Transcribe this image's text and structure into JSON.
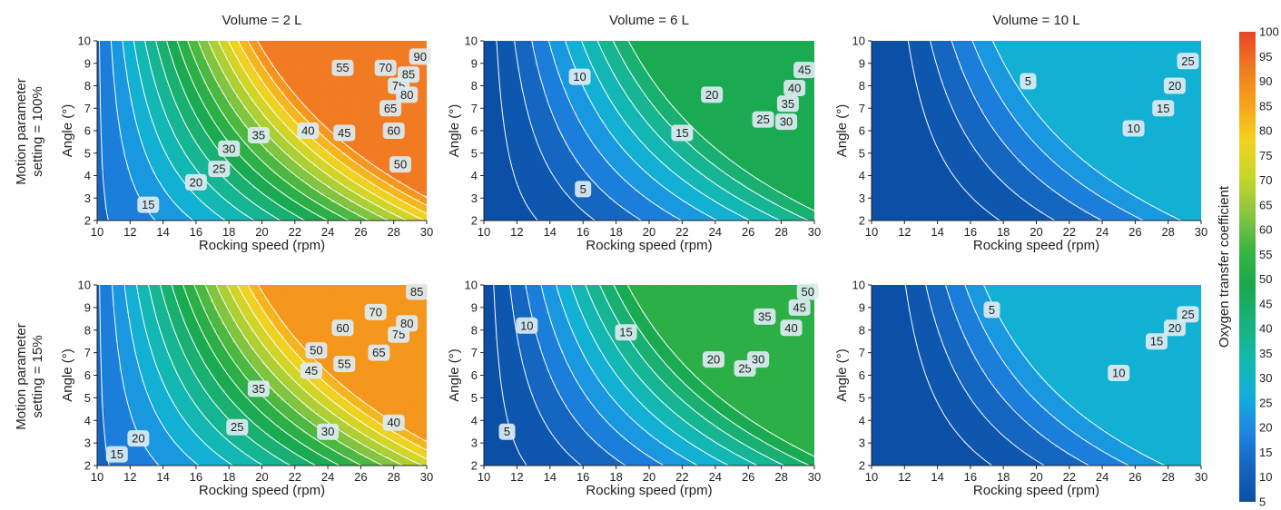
{
  "colorbar": {
    "title": "Oxygen transfer coefficient",
    "ticks": [
      5,
      10,
      15,
      20,
      25,
      30,
      35,
      40,
      45,
      50,
      55,
      60,
      65,
      70,
      75,
      80,
      85,
      90,
      95,
      100
    ],
    "range": [
      5,
      100
    ],
    "stops": [
      "#0b4fa6",
      "#1565c0",
      "#1e88e5",
      "#12b0d8",
      "#13b9a8",
      "#19b178",
      "#1aa84a",
      "#3db542",
      "#8cc63f",
      "#c8d62a",
      "#f3d21f",
      "#f7a21b",
      "#f17a22",
      "#e84427"
    ]
  },
  "row_labels": [
    [
      "Motion parameter",
      "setting = 100%"
    ],
    [
      "Motion parameter",
      "setting = 15%"
    ]
  ],
  "chart_data": [
    {
      "type": "contour",
      "title": "Volume = 2 L",
      "xlabel": "Rocking speed (rpm)",
      "ylabel": "Angle (°)",
      "xlim": [
        10,
        30
      ],
      "ylim": [
        2,
        10
      ],
      "xticks": [
        10,
        12,
        14,
        16,
        18,
        20,
        22,
        24,
        26,
        28,
        30
      ],
      "yticks": [
        2,
        3,
        4,
        5,
        6,
        7,
        8,
        9,
        10
      ],
      "levels": [
        15,
        20,
        25,
        30,
        35,
        40,
        45,
        50,
        55,
        60,
        65,
        70,
        75,
        80,
        85,
        90
      ],
      "model": {
        "a": 14,
        "b": 0.7,
        "c": 6
      },
      "labels": [
        {
          "text": "15",
          "x": 13.1,
          "y": 2.7
        },
        {
          "text": "20",
          "x": 16.0,
          "y": 3.7
        },
        {
          "text": "25",
          "x": 17.4,
          "y": 4.3
        },
        {
          "text": "30",
          "x": 18.0,
          "y": 5.2
        },
        {
          "text": "35",
          "x": 19.8,
          "y": 5.8
        },
        {
          "text": "40",
          "x": 22.8,
          "y": 6.0
        },
        {
          "text": "45",
          "x": 25.0,
          "y": 5.9
        },
        {
          "text": "50",
          "x": 28.4,
          "y": 4.5
        },
        {
          "text": "55",
          "x": 24.9,
          "y": 8.8
        },
        {
          "text": "60",
          "x": 28.0,
          "y": 6.0
        },
        {
          "text": "65",
          "x": 27.8,
          "y": 7.0
        },
        {
          "text": "70",
          "x": 27.5,
          "y": 8.8
        },
        {
          "text": "75",
          "x": 28.3,
          "y": 8.0
        },
        {
          "text": "80",
          "x": 28.8,
          "y": 7.6
        },
        {
          "text": "85",
          "x": 28.9,
          "y": 8.5
        },
        {
          "text": "90",
          "x": 29.6,
          "y": 9.3
        }
      ]
    },
    {
      "type": "contour",
      "title": "Volume = 6 L",
      "xlabel": "Rocking speed (rpm)",
      "ylabel": "Angle (°)",
      "xlim": [
        10,
        30
      ],
      "ylim": [
        2,
        10
      ],
      "xticks": [
        10,
        12,
        14,
        16,
        18,
        20,
        22,
        24,
        26,
        28,
        30
      ],
      "yticks": [
        2,
        3,
        4,
        5,
        6,
        7,
        8,
        9,
        10
      ],
      "levels": [
        5,
        10,
        15,
        20,
        25,
        30,
        35,
        40,
        45
      ],
      "model": {
        "a": 1.5,
        "b": 0.45,
        "c": 3
      },
      "labels": [
        {
          "text": "5",
          "x": 16.0,
          "y": 3.4
        },
        {
          "text": "10",
          "x": 15.8,
          "y": 8.4
        },
        {
          "text": "15",
          "x": 22.0,
          "y": 5.9
        },
        {
          "text": "20",
          "x": 23.8,
          "y": 7.6
        },
        {
          "text": "25",
          "x": 26.9,
          "y": 6.5
        },
        {
          "text": "30",
          "x": 28.3,
          "y": 6.4
        },
        {
          "text": "35",
          "x": 28.4,
          "y": 7.2
        },
        {
          "text": "40",
          "x": 28.8,
          "y": 7.9
        },
        {
          "text": "45",
          "x": 29.4,
          "y": 8.7
        }
      ]
    },
    {
      "type": "contour",
      "title": "Volume = 10 L",
      "xlabel": "Rocking speed (rpm)",
      "ylabel": "Angle (°)",
      "xlim": [
        10,
        30
      ],
      "ylim": [
        2,
        10
      ],
      "xticks": [
        10,
        12,
        14,
        16,
        18,
        20,
        22,
        24,
        26,
        28,
        30
      ],
      "yticks": [
        2,
        3,
        4,
        5,
        6,
        7,
        8,
        9,
        10
      ],
      "levels": [
        5,
        10,
        15,
        20,
        25
      ],
      "model": {
        "a": -3,
        "b": 0.35,
        "c": 1.6
      },
      "labels": [
        {
          "text": "5",
          "x": 19.5,
          "y": 8.2
        },
        {
          "text": "10",
          "x": 25.9,
          "y": 6.1
        },
        {
          "text": "15",
          "x": 27.7,
          "y": 7.0
        },
        {
          "text": "20",
          "x": 28.4,
          "y": 8.0
        },
        {
          "text": "25",
          "x": 29.2,
          "y": 9.1
        }
      ]
    },
    {
      "type": "contour",
      "title": "",
      "xlabel": "Rocking speed (rpm)",
      "ylabel": "Angle (°)",
      "xlim": [
        10,
        30
      ],
      "ylim": [
        2,
        10
      ],
      "xticks": [
        10,
        12,
        14,
        16,
        18,
        20,
        22,
        24,
        26,
        28,
        30
      ],
      "yticks": [
        2,
        3,
        4,
        5,
        6,
        7,
        8,
        9,
        10
      ],
      "levels": [
        15,
        20,
        25,
        30,
        35,
        40,
        45,
        50,
        55,
        60,
        65,
        70,
        75,
        80,
        85
      ],
      "model": {
        "a": 14,
        "b": 0.65,
        "c": 5.8
      },
      "labels": [
        {
          "text": "15",
          "x": 11.2,
          "y": 2.5
        },
        {
          "text": "20",
          "x": 12.5,
          "y": 3.2
        },
        {
          "text": "25",
          "x": 18.5,
          "y": 3.7
        },
        {
          "text": "30",
          "x": 24.0,
          "y": 3.5
        },
        {
          "text": "35",
          "x": 19.8,
          "y": 5.4
        },
        {
          "text": "40",
          "x": 28.0,
          "y": 3.9
        },
        {
          "text": "45",
          "x": 23.0,
          "y": 6.2
        },
        {
          "text": "50",
          "x": 23.3,
          "y": 7.1
        },
        {
          "text": "55",
          "x": 25.0,
          "y": 6.5
        },
        {
          "text": "60",
          "x": 24.9,
          "y": 8.1
        },
        {
          "text": "65",
          "x": 27.1,
          "y": 7.0
        },
        {
          "text": "70",
          "x": 26.9,
          "y": 8.8
        },
        {
          "text": "75",
          "x": 28.3,
          "y": 7.8
        },
        {
          "text": "80",
          "x": 28.8,
          "y": 8.3
        },
        {
          "text": "85",
          "x": 29.4,
          "y": 9.7
        }
      ]
    },
    {
      "type": "contour",
      "title": "",
      "xlabel": "Rocking speed (rpm)",
      "ylabel": "Angle (°)",
      "xlim": [
        10,
        30
      ],
      "ylim": [
        2,
        10
      ],
      "xticks": [
        10,
        12,
        14,
        16,
        18,
        20,
        22,
        24,
        26,
        28,
        30
      ],
      "yticks": [
        2,
        3,
        4,
        5,
        6,
        7,
        8,
        9,
        10
      ],
      "levels": [
        5,
        10,
        15,
        20,
        25,
        30,
        35,
        40,
        45,
        50
      ],
      "model": {
        "a": 2,
        "b": 0.5,
        "c": 3.2
      },
      "labels": [
        {
          "text": "5",
          "x": 11.4,
          "y": 3.5
        },
        {
          "text": "10",
          "x": 12.6,
          "y": 8.2
        },
        {
          "text": "15",
          "x": 18.6,
          "y": 7.9
        },
        {
          "text": "20",
          "x": 23.9,
          "y": 6.7
        },
        {
          "text": "25",
          "x": 25.8,
          "y": 6.3
        },
        {
          "text": "30",
          "x": 26.6,
          "y": 6.7
        },
        {
          "text": "35",
          "x": 27.0,
          "y": 8.6
        },
        {
          "text": "40",
          "x": 28.6,
          "y": 8.1
        },
        {
          "text": "45",
          "x": 29.1,
          "y": 9.0
        },
        {
          "text": "50",
          "x": 29.6,
          "y": 9.7
        }
      ]
    },
    {
      "type": "contour",
      "title": "",
      "xlabel": "Rocking speed (rpm)",
      "ylabel": "Angle (°)",
      "xlim": [
        10,
        30
      ],
      "ylim": [
        2,
        10
      ],
      "xticks": [
        10,
        12,
        14,
        16,
        18,
        20,
        22,
        24,
        26,
        28,
        30
      ],
      "yticks": [
        2,
        3,
        4,
        5,
        6,
        7,
        8,
        9,
        10
      ],
      "levels": [
        5,
        10,
        15,
        20,
        25
      ],
      "model": {
        "a": -3,
        "b": 0.38,
        "c": 1.8
      },
      "labels": [
        {
          "text": "5",
          "x": 17.3,
          "y": 8.9
        },
        {
          "text": "10",
          "x": 25.0,
          "y": 6.1
        },
        {
          "text": "15",
          "x": 27.3,
          "y": 7.5
        },
        {
          "text": "20",
          "x": 28.4,
          "y": 8.1
        },
        {
          "text": "25",
          "x": 29.2,
          "y": 8.7
        }
      ]
    }
  ]
}
